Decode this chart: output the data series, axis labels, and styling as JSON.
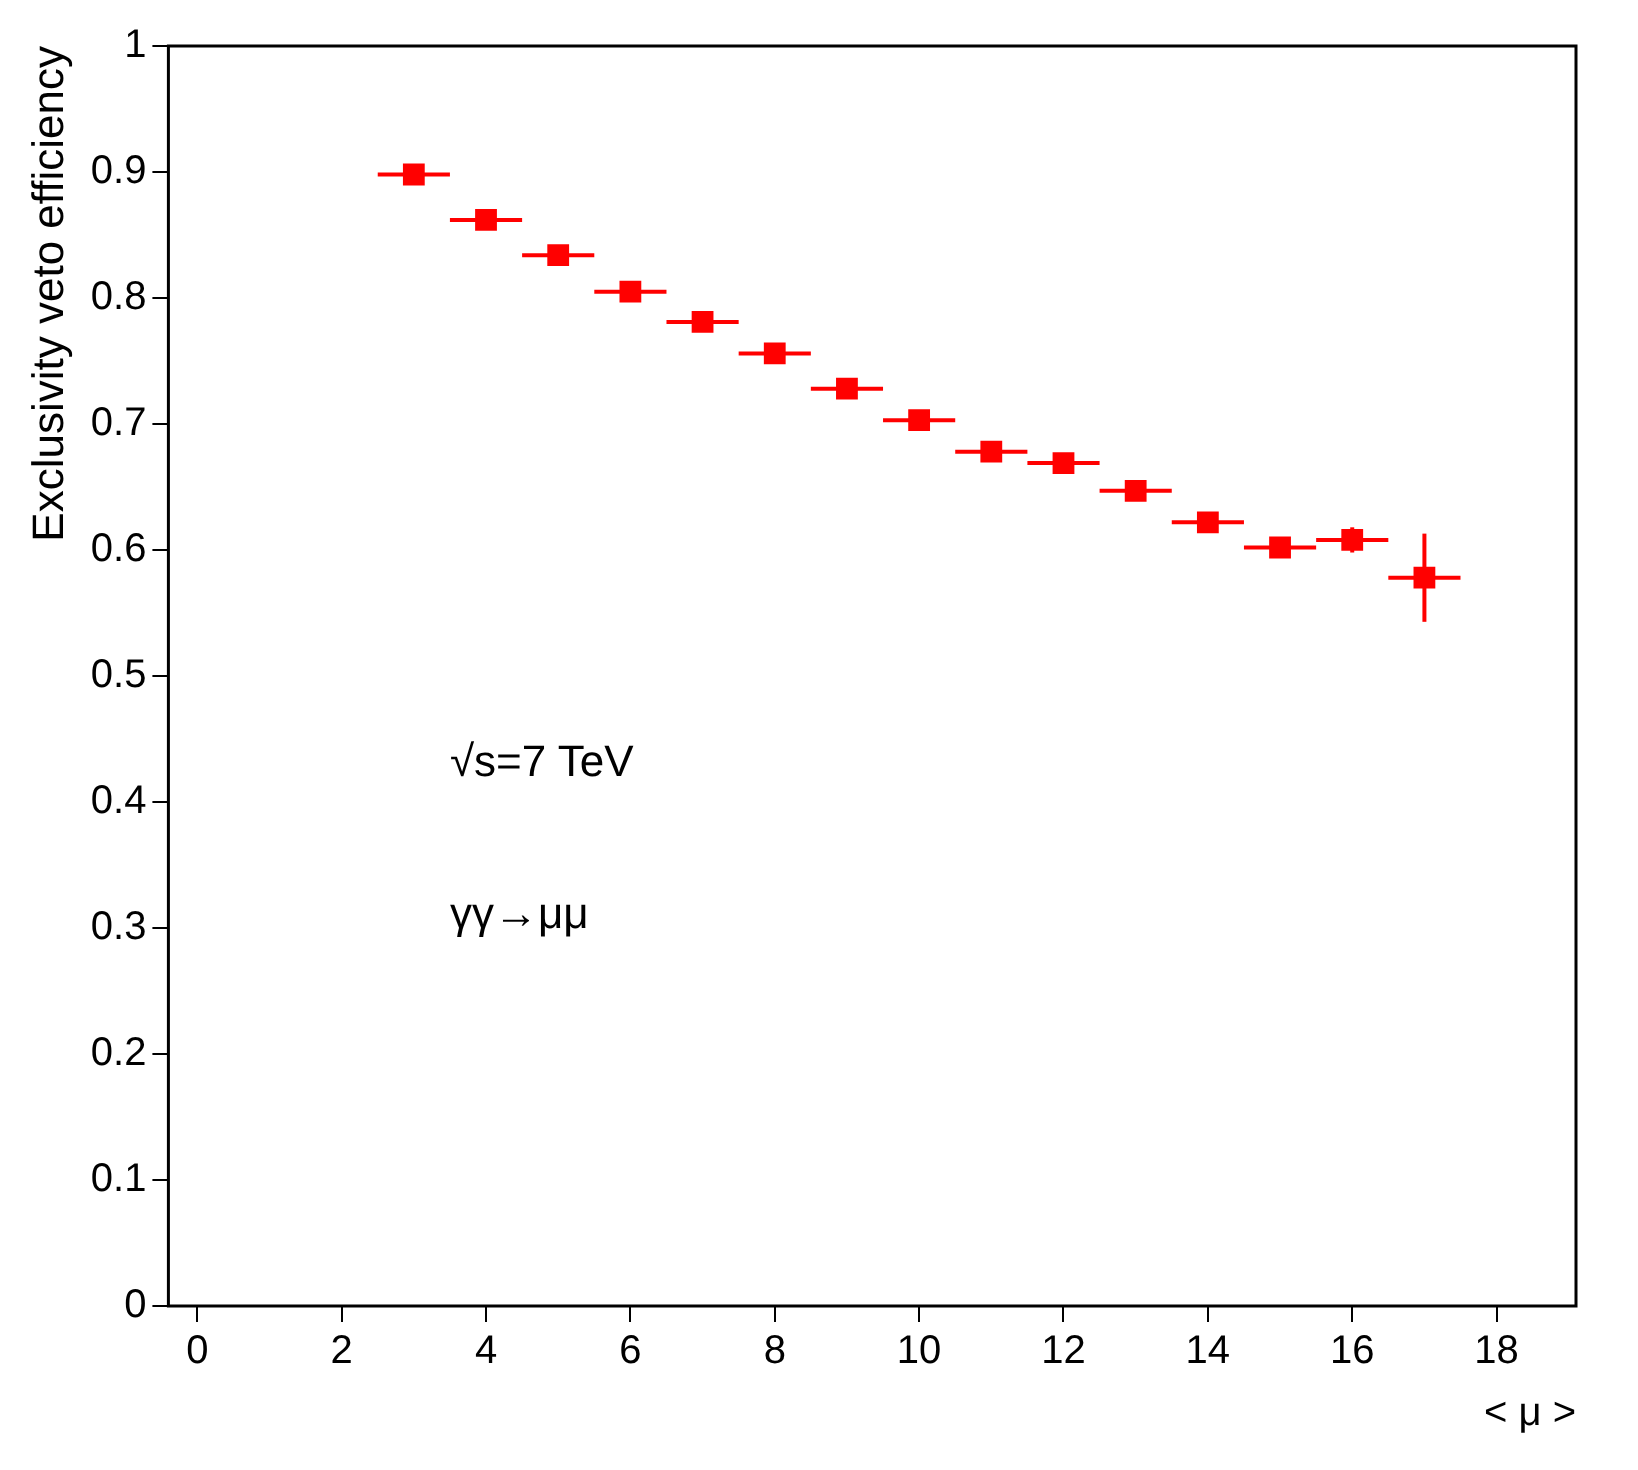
{
  "chart_data": {
    "type": "scatter",
    "xlabel": "< μ >",
    "ylabel": "Exclusivity veto efficiency",
    "x": [
      3,
      4,
      5,
      6,
      7,
      8,
      9,
      10,
      11,
      12,
      13,
      14,
      15,
      16,
      17
    ],
    "series": [
      {
        "color": "#ff0000",
        "values": [
          0.898,
          0.862,
          0.834,
          0.805,
          0.781,
          0.756,
          0.728,
          0.703,
          0.678,
          0.669,
          0.647,
          0.622,
          0.602,
          0.608,
          0.578
        ],
        "errors": [
          0.004,
          0.004,
          0.004,
          0.004,
          0.004,
          0.004,
          0.005,
          0.005,
          0.005,
          0.005,
          0.006,
          0.006,
          0.007,
          0.01,
          0.035
        ],
        "xerrors": [
          0.5,
          0.5,
          0.5,
          0.5,
          0.5,
          0.5,
          0.5,
          0.5,
          0.5,
          0.5,
          0.5,
          0.5,
          0.5,
          0.5,
          0.5
        ]
      }
    ],
    "marker": "square",
    "grid": false,
    "legend": false,
    "xlim": [
      -0.4,
      19.1
    ],
    "xticks": [
      0,
      2,
      4,
      6,
      8,
      10,
      12,
      14,
      16,
      18
    ],
    "ylim": [
      0,
      1
    ],
    "yticks": [
      0,
      0.1,
      0.2,
      0.3,
      0.4,
      0.5,
      0.6,
      0.7,
      0.8,
      0.9,
      1
    ],
    "annotations": [
      "√s=7 TeV",
      "γγ→μμ"
    ]
  }
}
